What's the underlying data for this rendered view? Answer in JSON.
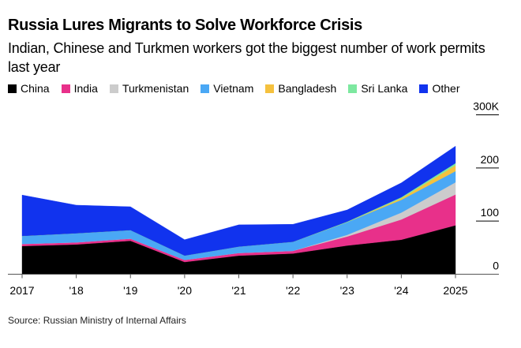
{
  "header": {
    "title": "Russia Lures Migrants to Solve Workforce Crisis",
    "subtitle": "Indian, Chinese and Turkmen workers got the biggest number of work permits last year"
  },
  "footer": {
    "source": "Source: Russian Ministry of Internal Affairs"
  },
  "chart_data": {
    "type": "area",
    "stacked": true,
    "title": "Russia Lures Migrants to Solve Workforce Crisis",
    "subtitle": "Indian, Chinese and Turkmen workers got the biggest number of work permits last year",
    "xlabel": "",
    "ylabel": "",
    "categories": [
      "2017",
      "2018",
      "2019",
      "2020",
      "2021",
      "2022",
      "2023",
      "2024",
      "2025"
    ],
    "x_tick_labels": [
      "2017",
      "'18",
      "'19",
      "'20",
      "'21",
      "'22",
      "'23",
      "'24",
      "2025"
    ],
    "y_ticks": [
      0,
      100,
      200,
      300
    ],
    "y_tick_labels": [
      "0",
      "100",
      "200",
      "300K"
    ],
    "ylim": [
      0,
      300
    ],
    "units": "thousands of work permits",
    "grid": false,
    "legend_position": "top-left",
    "series": [
      {
        "name": "China",
        "color": "#000000",
        "values": [
          53,
          56,
          63,
          23,
          35,
          39,
          54,
          65,
          92
        ]
      },
      {
        "name": "India",
        "color": "#e8308a",
        "values": [
          4,
          4,
          4,
          4,
          5,
          5,
          17,
          38,
          58
        ]
      },
      {
        "name": "Turkmenistan",
        "color": "#cccccc",
        "values": [
          0,
          0,
          0,
          0,
          0,
          0,
          3,
          13,
          23
        ]
      },
      {
        "name": "Vietnam",
        "color": "#4aa8f5",
        "values": [
          15,
          17,
          16,
          8,
          12,
          17,
          24,
          24,
          21
        ]
      },
      {
        "name": "Bangladesh",
        "color": "#f5c13e",
        "values": [
          0,
          0,
          0,
          0,
          0,
          0,
          0,
          3,
          11
        ]
      },
      {
        "name": "Sri Lanka",
        "color": "#7de8a0",
        "values": [
          0,
          0,
          0,
          0,
          0,
          0,
          1,
          2,
          4
        ]
      },
      {
        "name": "Other",
        "color": "#1133ee",
        "values": [
          77,
          53,
          44,
          30,
          41,
          33,
          22,
          27,
          32
        ]
      }
    ],
    "source": "Source: Russian Ministry of Internal Affairs"
  }
}
